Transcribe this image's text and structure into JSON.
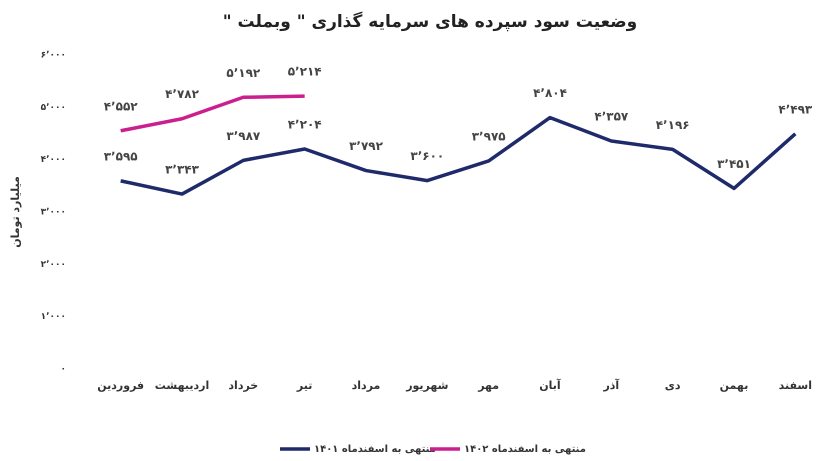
{
  "chart_data": {
    "type": "line",
    "title": "وضعیت سود سپرده های سرمایه گذاری \" وبملت \"",
    "y_label": "میلیارد تومان",
    "categories": [
      "فروردین",
      "اردیبهشت",
      "خرداد",
      "تیر",
      "مرداد",
      "شهریور",
      "مهر",
      "آبان",
      "آذر",
      "دی",
      "بهمن",
      "اسفند"
    ],
    "series": [
      {
        "name": "منتهی به اسفندماه ۱۴۰۱",
        "color": "#1f2a6b",
        "values": [
          3595,
          3343,
          3987,
          4204,
          3792,
          3600,
          3975,
          4804,
          4357,
          4196,
          3451,
          4493
        ],
        "value_labels": [
          "۳٬۵۹۵",
          "۳٬۳۴۳",
          "۳٬۹۸۷",
          "۴٬۲۰۴",
          "۳٬۷۹۲",
          "۳٬۶۰۰",
          "۳٬۹۷۵",
          "۴٬۸۰۴",
          "۴٬۳۵۷",
          "۴٬۱۹۶",
          "۳٬۴۵۱",
          "۴٬۴۹۳"
        ]
      },
      {
        "name": "منتهی به اسفندماه ۱۴۰۲",
        "color": "#cc1f8f",
        "values": [
          4552,
          4782,
          5192,
          5214,
          null,
          null,
          null,
          null,
          null,
          null,
          null,
          null
        ],
        "value_labels": [
          "۴٬۵۵۲",
          "۴٬۷۸۲",
          "۵٬۱۹۲",
          "۵٬۲۱۴",
          null,
          null,
          null,
          null,
          null,
          null,
          null,
          null
        ]
      }
    ],
    "ylim": [
      0,
      6000
    ],
    "yticks": [
      {
        "value": 0,
        "label": "۰"
      },
      {
        "value": 1000,
        "label": "۱٬۰۰۰"
      },
      {
        "value": 2000,
        "label": "۲٬۰۰۰"
      },
      {
        "value": 3000,
        "label": "۳٬۰۰۰"
      },
      {
        "value": 4000,
        "label": "۴٬۰۰۰"
      },
      {
        "value": 5000,
        "label": "۵٬۰۰۰"
      },
      {
        "value": 6000,
        "label": "۶٬۰۰۰"
      }
    ],
    "grid": false,
    "legend": "bottom"
  }
}
